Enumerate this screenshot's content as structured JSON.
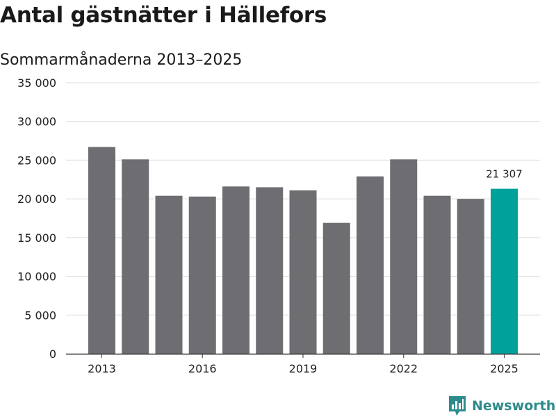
{
  "title": "Antal gästnätter i Hällefors",
  "subtitle": "Sommarmånaderna 2013–2025",
  "brand": {
    "name": "Newsworthy",
    "icon": "bar-chart-flag-icon",
    "color": "#2e8b8b"
  },
  "colors": {
    "bar": "#6d6d72",
    "highlight": "#00a19a",
    "grid": "#dcdcdc",
    "axis": "#333333"
  },
  "chart_data": {
    "type": "bar",
    "categories": [
      "2013",
      "2014",
      "2015",
      "2016",
      "2017",
      "2018",
      "2019",
      "2020",
      "2021",
      "2022",
      "2023",
      "2024",
      "2025"
    ],
    "values": [
      26700,
      25100,
      20400,
      20300,
      21600,
      21500,
      21100,
      16900,
      22900,
      25100,
      20400,
      20000,
      21307
    ],
    "x_tick_labels": [
      "2013",
      "2016",
      "2019",
      "2022",
      "2025"
    ],
    "y_tick_labels": [
      "0",
      "5 000",
      "10 000",
      "15 000",
      "20 000",
      "25 000",
      "30 000",
      "35 000"
    ],
    "y_tick_values": [
      0,
      5000,
      10000,
      15000,
      20000,
      25000,
      30000,
      35000
    ],
    "ylim": [
      0,
      35000
    ],
    "highlight_category": "2025",
    "data_labels": [
      {
        "category": "2025",
        "text": "21 307"
      }
    ],
    "title": "Antal gästnätter i Hällefors",
    "subtitle": "Sommarmånaderna 2013–2025",
    "xlabel": "",
    "ylabel": "",
    "grid": true,
    "legend": "none"
  }
}
